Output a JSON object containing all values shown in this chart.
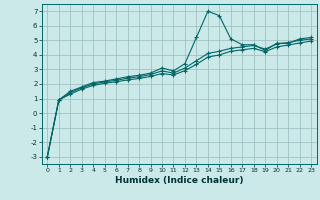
{
  "xlabel": "Humidex (Indice chaleur)",
  "xlim": [
    -0.5,
    23.5
  ],
  "ylim": [
    -3.5,
    7.5
  ],
  "yticks": [
    -3,
    -2,
    -1,
    0,
    1,
    2,
    3,
    4,
    5,
    6,
    7
  ],
  "xticks": [
    0,
    1,
    2,
    3,
    4,
    5,
    6,
    7,
    8,
    9,
    10,
    11,
    12,
    13,
    14,
    15,
    16,
    17,
    18,
    19,
    20,
    21,
    22,
    23
  ],
  "background_color": "#cce9e9",
  "line_color": "#006666",
  "grid_color": "#99bbbb",
  "line1_x": [
    0,
    1,
    2,
    3,
    4,
    5,
    6,
    7,
    8,
    9,
    10,
    11,
    12,
    13,
    14,
    15,
    16,
    17,
    18,
    19,
    20,
    21,
    22,
    23
  ],
  "line1_y": [
    -3.0,
    0.9,
    1.5,
    1.8,
    2.1,
    2.2,
    2.35,
    2.5,
    2.6,
    2.75,
    3.1,
    2.9,
    3.4,
    5.2,
    7.0,
    6.7,
    5.1,
    4.7,
    4.7,
    4.3,
    4.8,
    4.8,
    5.1,
    5.2
  ],
  "line2_x": [
    0,
    1,
    2,
    3,
    4,
    5,
    6,
    7,
    8,
    9,
    10,
    11,
    12,
    13,
    14,
    15,
    16,
    17,
    18,
    19,
    20,
    21,
    22,
    23
  ],
  "line2_y": [
    -3.0,
    0.9,
    1.4,
    1.75,
    2.0,
    2.15,
    2.25,
    2.4,
    2.5,
    2.65,
    2.9,
    2.75,
    3.1,
    3.6,
    4.1,
    4.25,
    4.45,
    4.55,
    4.65,
    4.4,
    4.75,
    4.85,
    5.0,
    5.1
  ],
  "line3_x": [
    0,
    1,
    2,
    3,
    4,
    5,
    6,
    7,
    8,
    9,
    10,
    11,
    12,
    13,
    14,
    15,
    16,
    17,
    18,
    19,
    20,
    21,
    22,
    23
  ],
  "line3_y": [
    -3.0,
    0.9,
    1.3,
    1.65,
    1.9,
    2.05,
    2.15,
    2.28,
    2.38,
    2.52,
    2.72,
    2.62,
    2.92,
    3.35,
    3.85,
    4.0,
    4.25,
    4.35,
    4.45,
    4.22,
    4.55,
    4.68,
    4.82,
    4.95
  ]
}
